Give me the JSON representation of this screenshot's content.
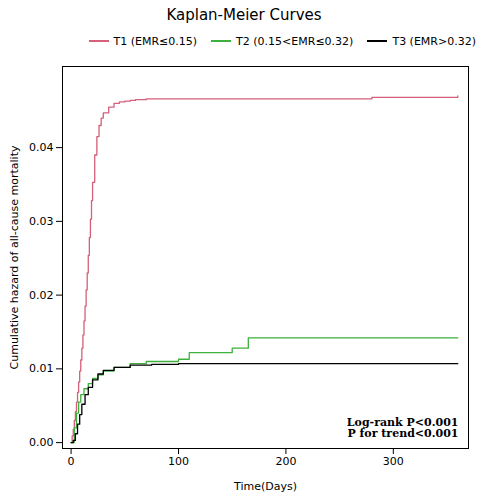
{
  "chart_data": {
    "type": "step",
    "title": "Kaplan-Meier Curves",
    "xlabel": "Time(Days)",
    "ylabel": "Cumulative hazard of all-cause mortality",
    "xlim": [
      -8,
      370
    ],
    "ylim": [
      -0.0008,
      0.051
    ],
    "xticks": [
      0,
      100,
      200,
      300
    ],
    "yticks": [
      {
        "value": 0.0,
        "label": "0.00"
      },
      {
        "value": 0.01,
        "label": "0.01"
      },
      {
        "value": 0.02,
        "label": "0.02"
      },
      {
        "value": 0.03,
        "label": "0.03"
      },
      {
        "value": 0.04,
        "label": "0.04"
      }
    ],
    "grid": false,
    "legend": "upper right",
    "annotation": "Log-rank P<0.001\nP for trend<0.001",
    "series": [
      {
        "name": "T1 (EMR≤0.15)",
        "color": "#d4607a",
        "x": [
          0,
          1,
          2,
          3,
          4,
          5,
          6,
          7,
          8,
          9,
          10,
          11,
          12,
          13,
          14,
          15,
          16,
          17,
          18,
          19,
          20,
          22,
          24,
          26,
          28,
          30,
          35,
          40,
          45,
          50,
          55,
          60,
          70,
          280,
          360
        ],
        "values": [
          0,
          0.0009,
          0.0018,
          0.003,
          0.0042,
          0.0055,
          0.0068,
          0.0082,
          0.0097,
          0.0112,
          0.0128,
          0.0146,
          0.0165,
          0.0185,
          0.0207,
          0.023,
          0.0254,
          0.0278,
          0.0303,
          0.0328,
          0.0353,
          0.039,
          0.0415,
          0.043,
          0.044,
          0.0447,
          0.0455,
          0.046,
          0.0462,
          0.0463,
          0.0464,
          0.0465,
          0.0466,
          0.0468,
          0.047
        ]
      },
      {
        "name": "T2 (0.15<EMR≤0.32)",
        "color": "#3db03d",
        "x": [
          0,
          3,
          5,
          7,
          9,
          12,
          16,
          20,
          25,
          30,
          40,
          55,
          70,
          100,
          110,
          150,
          165,
          360
        ],
        "values": [
          0,
          0.002,
          0.004,
          0.0055,
          0.0065,
          0.0073,
          0.008,
          0.0087,
          0.0092,
          0.0097,
          0.0102,
          0.0107,
          0.011,
          0.0113,
          0.0122,
          0.0128,
          0.0142,
          0.0142
        ]
      },
      {
        "name": "T3 (EMR>0.32)",
        "color": "black",
        "x": [
          0,
          2,
          4,
          6,
          8,
          10,
          13,
          16,
          20,
          25,
          30,
          40,
          55,
          75,
          100,
          360
        ],
        "values": [
          0,
          0.0003,
          0.0012,
          0.0025,
          0.0038,
          0.0052,
          0.0065,
          0.0075,
          0.0085,
          0.0093,
          0.0098,
          0.0102,
          0.0105,
          0.0106,
          0.0107,
          0.0107
        ]
      }
    ]
  }
}
